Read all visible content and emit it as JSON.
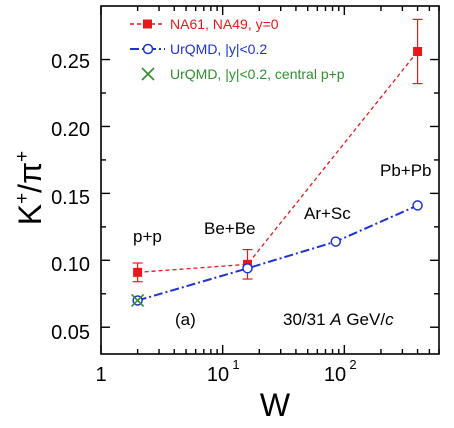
{
  "chart_data": {
    "type": "line",
    "xlabel": "W",
    "ylabel": "K⁺/π⁺",
    "xscale": "log",
    "xlim": [
      1,
      600
    ],
    "ylim": [
      0.03,
      0.29
    ],
    "x_tick_labels": [
      "1",
      "10",
      "10",
      "2"
    ],
    "y_ticks": [
      0.05,
      0.1,
      0.15,
      0.2,
      0.25
    ],
    "y_tick_labels": [
      "0.05",
      "0.10",
      "0.15",
      "0.20",
      "0.25"
    ],
    "legend_position": "top-left",
    "series": [
      {
        "name": "NA61, NA49, y=0",
        "color": "#e8191b",
        "marker": "filled-square",
        "line": "dashed",
        "x": [
          2,
          16,
          400
        ],
        "y": [
          0.091,
          0.097,
          0.256
        ],
        "err": [
          0.007,
          0.011,
          0.024
        ]
      },
      {
        "name": "UrQMD, |y|<0.2",
        "color": "#1e32d6",
        "marker": "open-circle",
        "line": "dash-dot",
        "x": [
          2,
          16,
          85,
          400
        ],
        "y": [
          0.07,
          0.094,
          0.114,
          0.141
        ]
      },
      {
        "name": "UrQMD, |y|<0.2, central p+p",
        "color": "#2f8f2f",
        "marker": "x",
        "line": "none",
        "x": [
          2
        ],
        "y": [
          0.07
        ]
      }
    ],
    "annotations": {
      "pp": "p+p",
      "bebe": "Be+Be",
      "arsc": "Ar+Sc",
      "pbpb": "Pb+Pb",
      "panel": "(a)",
      "energy_pre": "30/31 ",
      "energy_A": "A",
      "energy_mid": " GeV/",
      "energy_c": "c"
    }
  }
}
